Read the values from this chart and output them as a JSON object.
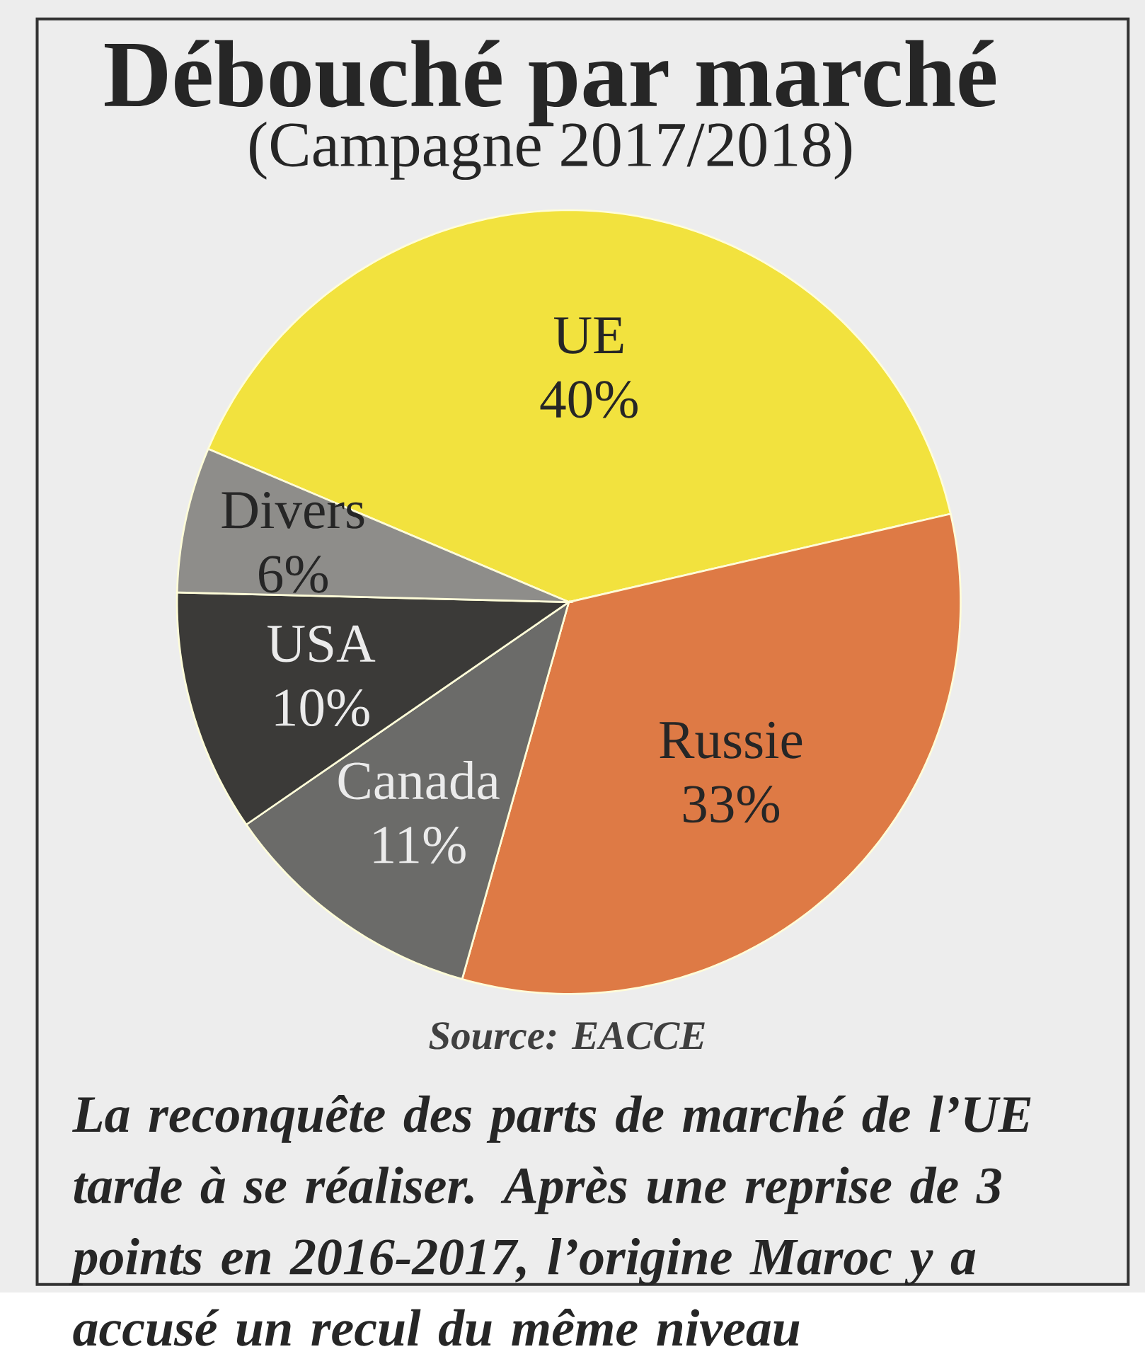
{
  "chart_data": {
    "type": "pie",
    "title": "Débouché par marché",
    "subtitle": "(Campagne 2017/2018)",
    "categories": [
      "UE",
      "Russie",
      "Canada",
      "USA",
      "Divers"
    ],
    "values": [
      40,
      33,
      11,
      10,
      6
    ],
    "value_labels": [
      "40%",
      "33%",
      "11%",
      "10%",
      "6%"
    ],
    "colors": [
      "#f2e23e",
      "#de7a45",
      "#6b6b69",
      "#3b3a38",
      "#8e8d8a"
    ],
    "annotations": [
      "Source: EACCE",
      "La reconquête des parts de marché de l’UE tarde à se réaliser. Après une reprise de 3 points en 2016-2017, l’origine Maroc y a accusé un recul du même niveau"
    ]
  }
}
